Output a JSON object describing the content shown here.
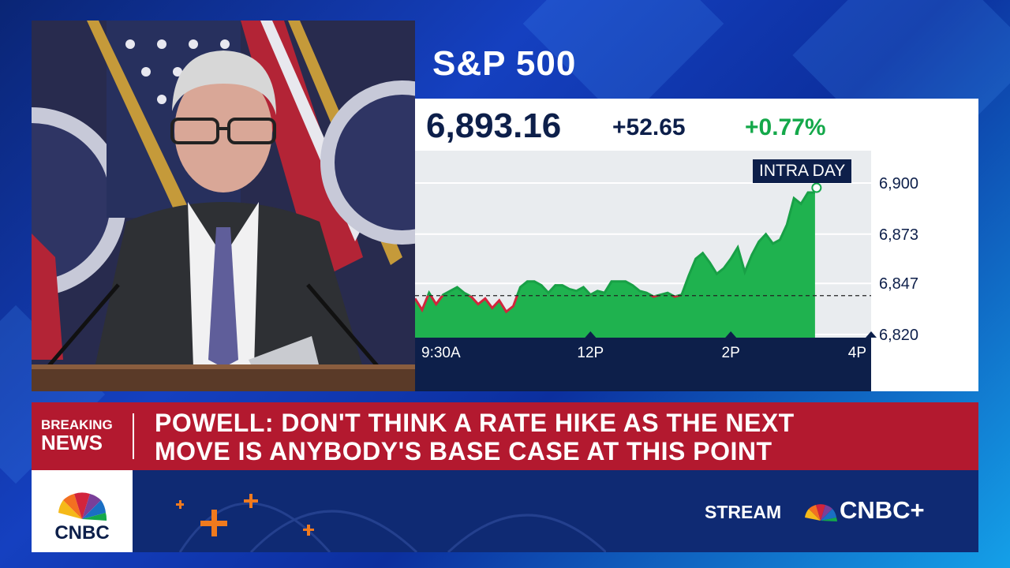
{
  "chart_data": {
    "type": "area",
    "title": "S&P 500",
    "price": "6,893.16",
    "change": "+52.65",
    "change_pct": "+0.77%",
    "period_label": "INTRA DAY",
    "x_tick_labels": [
      "9:30A",
      "12P",
      "2P",
      "4P"
    ],
    "y_tick_labels": [
      "6,900",
      "6,873",
      "6,847",
      "6,820"
    ],
    "ylim": [
      6820,
      6900
    ],
    "x_range_hours": [
      9.5,
      16
    ],
    "previous_close": 6840.51,
    "series": [
      {
        "x": [
          9.5,
          9.6,
          9.7,
          9.8,
          9.9,
          10.0,
          10.1,
          10.2,
          10.3,
          10.4,
          10.5,
          10.6,
          10.7,
          10.8,
          10.9,
          11.0,
          11.1,
          11.2,
          11.3,
          11.4,
          11.5,
          11.6,
          11.7,
          11.8,
          11.9,
          12.0,
          12.1,
          12.2,
          12.3,
          12.4,
          12.5,
          12.6,
          12.7,
          12.8,
          12.9,
          13.0,
          13.1,
          13.2,
          13.3,
          13.4,
          13.5,
          13.6,
          13.7,
          13.8,
          13.9,
          14.0,
          14.1,
          14.2,
          14.3,
          14.4,
          14.5,
          14.6,
          14.7,
          14.8,
          14.9,
          15.0,
          15.1,
          15.2
        ],
        "y": [
          6839,
          6833,
          6842,
          6836,
          6841,
          6843,
          6845,
          6842,
          6840,
          6836,
          6839,
          6834,
          6838,
          6832,
          6835,
          6845,
          6848,
          6848,
          6846,
          6842,
          6846,
          6846,
          6844,
          6843,
          6845,
          6841,
          6843,
          6842,
          6848,
          6848,
          6848,
          6846,
          6843,
          6842,
          6840,
          6841,
          6842,
          6840,
          6841,
          6851,
          6860,
          6863,
          6858,
          6852,
          6855,
          6860,
          6866,
          6853,
          6862,
          6869,
          6873,
          6868,
          6870,
          6878,
          6892,
          6889,
          6895,
          6895
        ]
      }
    ]
  },
  "breaking": {
    "line1": "BREAKING",
    "line2": "NEWS"
  },
  "headline": {
    "line1": "POWELL: DON'T THINK A RATE HIKE AS THE NEXT",
    "line2": "MOVE IS ANYBODY'S BASE CASE AT THIS POINT"
  },
  "network": {
    "logo_text": "CNBC",
    "stream_label": "STREAM",
    "plus_brand": "CNBC+"
  },
  "colors": {
    "accent_green": "#14a84a",
    "loss_red": "#d2243c",
    "navy": "#0d1f4a",
    "breaking_red": "#b3192f"
  },
  "icons": [
    "cnbc-peacock-icon",
    "triangle-up-icon"
  ]
}
